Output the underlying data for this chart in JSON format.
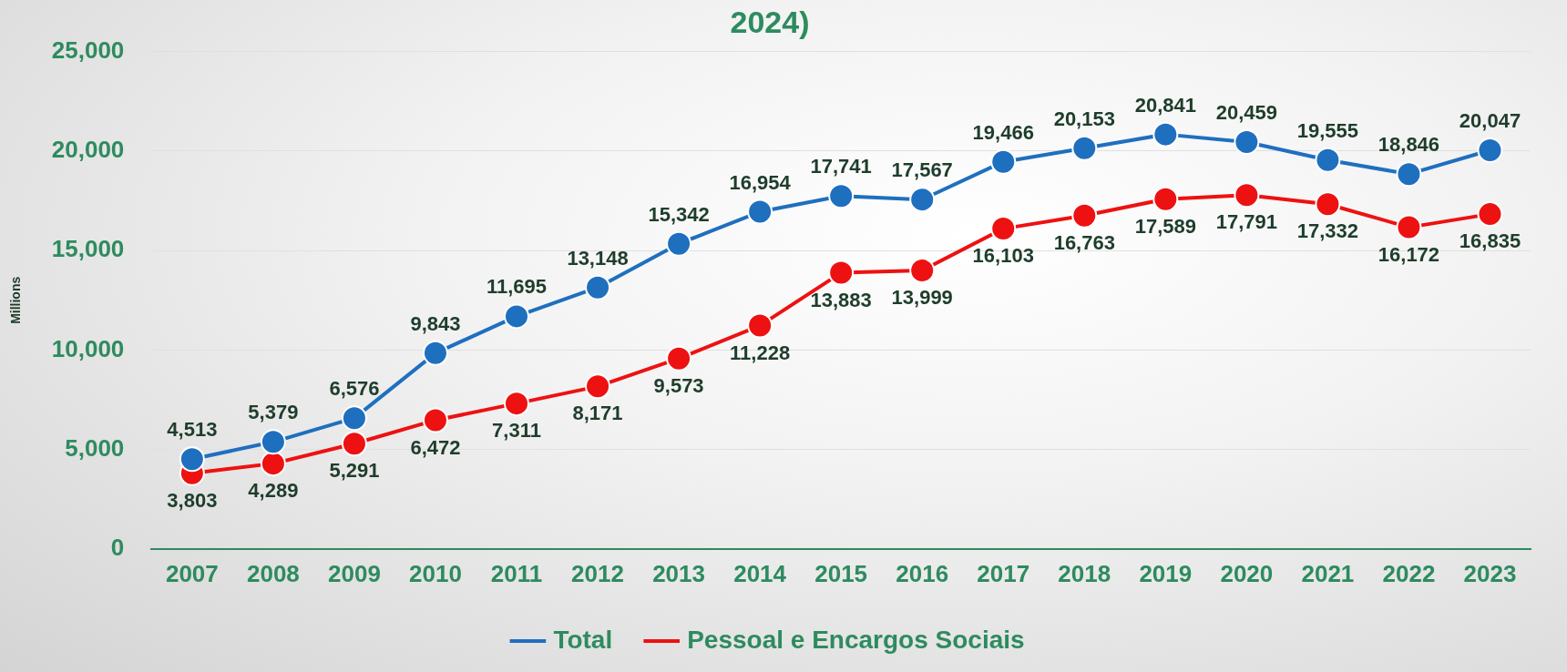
{
  "chart_data": {
    "type": "line",
    "title": "2024)",
    "ylabel": "Millions",
    "categories": [
      "2007",
      "2008",
      "2009",
      "2010",
      "2011",
      "2012",
      "2013",
      "2014",
      "2015",
      "2016",
      "2017",
      "2018",
      "2019",
      "2020",
      "2021",
      "2022",
      "2023"
    ],
    "series": [
      {
        "name": "Total",
        "color": "#1f6fbf",
        "values": [
          4513,
          5379,
          6576,
          9843,
          11695,
          13148,
          15342,
          16954,
          17741,
          17567,
          19466,
          20153,
          20841,
          20459,
          19555,
          18846,
          20047
        ],
        "value_labels": [
          "4,513",
          "5,379",
          "6,576",
          "9,843",
          "11,695",
          "13,148",
          "15,342",
          "16,954",
          "17,741",
          "17,567",
          "19,466",
          "20,153",
          "20,841",
          "20,459",
          "19,555",
          "18,846",
          "20,047"
        ]
      },
      {
        "name": "Pessoal e Encargos Sociais",
        "color": "#ee1111",
        "values": [
          3803,
          4289,
          5291,
          6472,
          7311,
          8171,
          9573,
          11228,
          13883,
          13999,
          16103,
          16763,
          17589,
          17791,
          17332,
          16172,
          16835
        ],
        "value_labels": [
          "3,803",
          "4,289",
          "5,291",
          "6,472",
          "7,311",
          "8,171",
          "9,573",
          "11,228",
          "13,883",
          "13,999",
          "16,103",
          "16,763",
          "17,589",
          "17,791",
          "17,332",
          "16,172",
          "16,835"
        ]
      }
    ],
    "ylim": [
      0,
      25000
    ],
    "yticks": [
      0,
      {
        "value": 5000,
        "label": "5,000"
      },
      {
        "value": 10000,
        "label": "10,000"
      },
      {
        "value": 15000,
        "label": "15,000"
      },
      {
        "value": 20000,
        "label": "20,000"
      },
      {
        "value": 25000,
        "label": "25,000"
      }
    ],
    "grid": "y",
    "legend": "bottom",
    "marker": "circle",
    "line_style": "solid"
  }
}
